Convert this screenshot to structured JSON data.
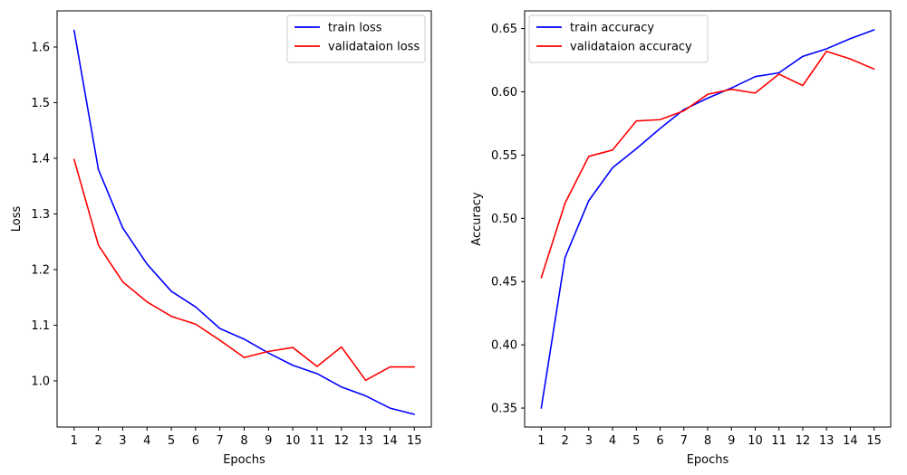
{
  "chart_data": [
    {
      "type": "line",
      "xlabel": "Epochs",
      "ylabel": "Loss",
      "x": [
        1,
        2,
        3,
        4,
        5,
        6,
        7,
        8,
        9,
        10,
        11,
        12,
        13,
        14,
        15
      ],
      "xlim": [
        0.3,
        15.7
      ],
      "ylim": [
        0.917,
        1.665
      ],
      "xticks": [
        "1",
        "2",
        "3",
        "4",
        "5",
        "6",
        "7",
        "8",
        "9",
        "10",
        "11",
        "12",
        "13",
        "14",
        "15"
      ],
      "yticks": [
        1.0,
        1.1,
        1.2,
        1.3,
        1.4,
        1.5,
        1.6
      ],
      "ytick_labels": [
        "1.0",
        "1.1",
        "1.2",
        "1.3",
        "1.4",
        "1.5",
        "1.6"
      ],
      "grid": false,
      "legend_position": "top-right",
      "series": [
        {
          "name": "train loss",
          "color": "#0000ff",
          "values": [
            1.63,
            1.38,
            1.275,
            1.21,
            1.161,
            1.133,
            1.094,
            1.075,
            1.05,
            1.028,
            1.013,
            0.989,
            0.973,
            0.951,
            0.94
          ]
        },
        {
          "name": "validataion loss",
          "color": "#ff0000",
          "values": [
            1.398,
            1.244,
            1.178,
            1.142,
            1.116,
            1.102,
            1.073,
            1.042,
            1.053,
            1.06,
            1.026,
            1.061,
            1.001,
            1.025,
            1.025
          ]
        }
      ]
    },
    {
      "type": "line",
      "xlabel": "Epochs",
      "ylabel": "Accuracy",
      "x": [
        1,
        2,
        3,
        4,
        5,
        6,
        7,
        8,
        9,
        10,
        11,
        12,
        13,
        14,
        15
      ],
      "xlim": [
        0.3,
        15.7
      ],
      "ylim": [
        0.335,
        0.664
      ],
      "xticks": [
        "1",
        "2",
        "3",
        "4",
        "5",
        "6",
        "7",
        "8",
        "9",
        "10",
        "11",
        "12",
        "13",
        "14",
        "15"
      ],
      "yticks": [
        0.35,
        0.4,
        0.45,
        0.5,
        0.55,
        0.6,
        0.65
      ],
      "ytick_labels": [
        "0.35",
        "0.40",
        "0.45",
        "0.50",
        "0.55",
        "0.60",
        "0.65"
      ],
      "grid": false,
      "legend_position": "top-left",
      "series": [
        {
          "name": "train accuracy",
          "color": "#0000ff",
          "values": [
            0.35,
            0.469,
            0.514,
            0.54,
            0.555,
            0.571,
            0.586,
            0.595,
            0.603,
            0.612,
            0.615,
            0.628,
            0.634,
            0.642,
            0.649
          ]
        },
        {
          "name": "validataion accuracy",
          "color": "#ff0000",
          "values": [
            0.453,
            0.512,
            0.549,
            0.554,
            0.577,
            0.578,
            0.585,
            0.598,
            0.602,
            0.599,
            0.614,
            0.605,
            0.632,
            0.626,
            0.618
          ]
        }
      ]
    }
  ]
}
